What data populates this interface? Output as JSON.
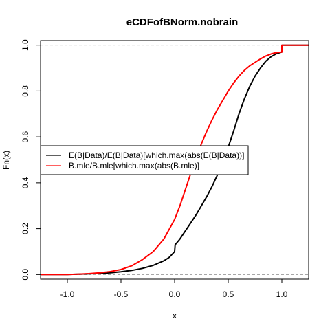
{
  "chart_data": {
    "type": "line",
    "title": "eCDFofBNorm.nobrain",
    "xlabel": "x",
    "ylabel": "Fn(x)",
    "xlim": [
      -1.25,
      1.25
    ],
    "ylim": [
      -0.02,
      1.02
    ],
    "xticks": [
      -1.0,
      -0.5,
      0.0,
      0.5,
      1.0
    ],
    "xtick_labels": [
      "-1.0",
      "-0.5",
      "0.0",
      "0.5",
      "1.0"
    ],
    "yticks": [
      0.0,
      0.2,
      0.4,
      0.6,
      0.8,
      1.0
    ],
    "ytick_labels": [
      "0.0",
      "0.2",
      "0.4",
      "0.6",
      "0.8",
      "1.0"
    ],
    "reference_lines": [
      0,
      1
    ],
    "legend_position": "center-left",
    "series": [
      {
        "name": "E(B|Data)/E(B|Data)[which.max(abs(E(B|Data))]",
        "color": "#000000",
        "x": [
          -1.25,
          -1.0,
          -0.9,
          -0.8,
          -0.7,
          -0.6,
          -0.5,
          -0.4,
          -0.3,
          -0.2,
          -0.1,
          -0.05,
          0.0,
          0.005,
          0.05,
          0.1,
          0.15,
          0.2,
          0.25,
          0.3,
          0.35,
          0.4,
          0.45,
          0.5,
          0.55,
          0.6,
          0.65,
          0.7,
          0.75,
          0.8,
          0.85,
          0.9,
          0.95,
          1.0,
          1.0,
          1.25
        ],
        "y": [
          0.0,
          0.0,
          0.002,
          0.003,
          0.005,
          0.008,
          0.012,
          0.018,
          0.027,
          0.04,
          0.06,
          0.075,
          0.1,
          0.13,
          0.155,
          0.19,
          0.225,
          0.26,
          0.3,
          0.34,
          0.385,
          0.435,
          0.49,
          0.555,
          0.625,
          0.7,
          0.765,
          0.82,
          0.865,
          0.9,
          0.93,
          0.95,
          0.963,
          0.97,
          1.0,
          1.0
        ]
      },
      {
        "name": "B.mle/B.mle[which.max(abs(B.mle)]",
        "color": "#ff0000",
        "x": [
          -1.25,
          -1.0,
          -0.9,
          -0.8,
          -0.7,
          -0.6,
          -0.5,
          -0.4,
          -0.3,
          -0.2,
          -0.1,
          0.0,
          0.05,
          0.1,
          0.15,
          0.2,
          0.25,
          0.3,
          0.35,
          0.4,
          0.45,
          0.5,
          0.55,
          0.6,
          0.65,
          0.7,
          0.75,
          0.8,
          0.85,
          0.9,
          0.95,
          1.0,
          1.0,
          1.25
        ],
        "y": [
          0.0,
          0.0,
          0.002,
          0.004,
          0.008,
          0.013,
          0.022,
          0.038,
          0.065,
          0.1,
          0.155,
          0.24,
          0.3,
          0.37,
          0.44,
          0.51,
          0.57,
          0.625,
          0.675,
          0.72,
          0.76,
          0.8,
          0.835,
          0.865,
          0.89,
          0.91,
          0.925,
          0.94,
          0.953,
          0.962,
          0.968,
          0.97,
          1.0,
          1.0
        ]
      }
    ]
  }
}
